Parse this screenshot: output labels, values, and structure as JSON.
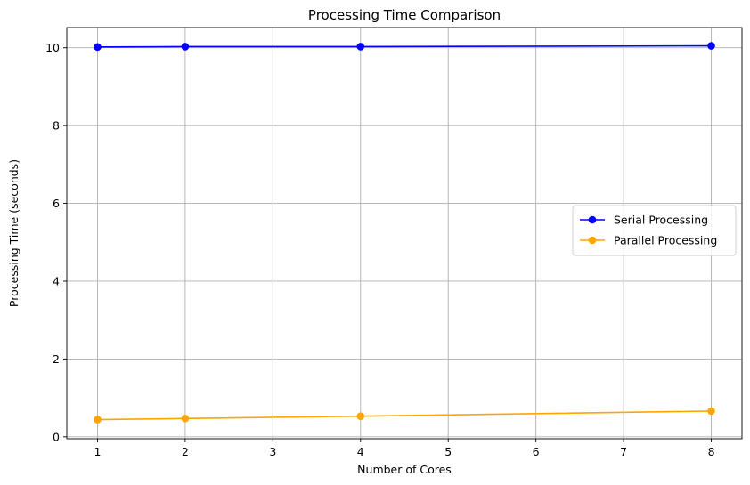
{
  "chart_data": {
    "type": "line",
    "title": "Processing Time Comparison",
    "xlabel": "Number of Cores",
    "ylabel": "Processing Time (seconds)",
    "xlim": [
      0.65,
      8.35
    ],
    "ylim": [
      -0.05,
      10.52
    ],
    "xticks": [
      1,
      2,
      3,
      4,
      5,
      6,
      7,
      8
    ],
    "yticks": [
      0,
      2,
      4,
      6,
      8,
      10
    ],
    "grid": true,
    "legend_position": "center-right",
    "series": [
      {
        "name": "Serial Processing",
        "color": "#0000ff",
        "marker": "circle",
        "x": [
          1,
          2,
          4,
          8
        ],
        "y": [
          10.02,
          10.03,
          10.03,
          10.05
        ]
      },
      {
        "name": "Parallel Processing",
        "color": "#ffa500",
        "marker": "circle",
        "x": [
          1,
          2,
          4,
          8
        ],
        "y": [
          0.44,
          0.47,
          0.53,
          0.66
        ]
      }
    ]
  }
}
